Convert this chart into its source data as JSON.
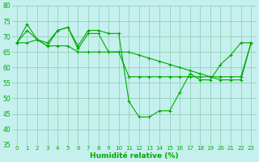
{
  "x": [
    0,
    1,
    2,
    3,
    4,
    5,
    6,
    7,
    8,
    9,
    10,
    11,
    12,
    13,
    14,
    15,
    16,
    17,
    18,
    19,
    20,
    21,
    22,
    23
  ],
  "line1": [
    68,
    74,
    69,
    67,
    72,
    73,
    67,
    72,
    72,
    71,
    71,
    49,
    44,
    44,
    46,
    46,
    52,
    58,
    56,
    56,
    61,
    64,
    68,
    68
  ],
  "line2": [
    68,
    72,
    69,
    68,
    72,
    73,
    66,
    71,
    71,
    65,
    65,
    57,
    57,
    57,
    57,
    57,
    57,
    57,
    57,
    57,
    57,
    57,
    57,
    68
  ],
  "line3": [
    68,
    68,
    69,
    67,
    67,
    67,
    65,
    65,
    65,
    65,
    65,
    65,
    64,
    63,
    62,
    61,
    60,
    59,
    58,
    57,
    56,
    56,
    56,
    68
  ],
  "line_color": "#00aa00",
  "bg_color": "#c5f0ee",
  "grid_color": "#88ccaa",
  "xlabel": "Humidité relative (%)",
  "ylim": [
    35,
    80
  ],
  "xlim_min": -0.5,
  "xlim_max": 23.5,
  "yticks": [
    35,
    40,
    45,
    50,
    55,
    60,
    65,
    70,
    75,
    80
  ],
  "xticks": [
    0,
    1,
    2,
    3,
    4,
    5,
    6,
    7,
    8,
    9,
    10,
    11,
    12,
    13,
    14,
    15,
    16,
    17,
    18,
    19,
    20,
    21,
    22,
    23
  ]
}
